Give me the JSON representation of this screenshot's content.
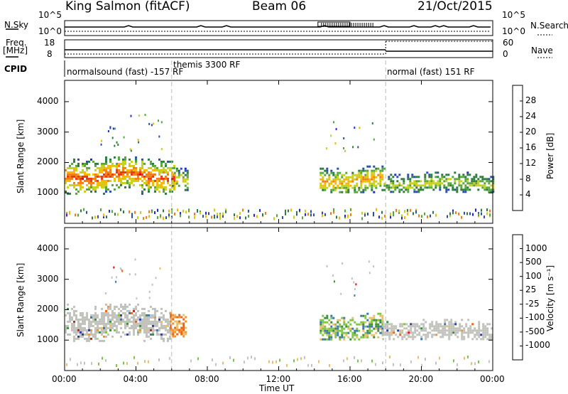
{
  "header": {
    "station": "King Salmon (fitACF)",
    "beam": "Beam 06",
    "date": "21/Oct/2015"
  },
  "top_panel": {
    "nsky_label": "N.Sky",
    "nsky_ticks": [
      "10^5",
      "10^0"
    ],
    "nsearch_label": "N.Search",
    "nsearch_ticks": [
      "10^5",
      "10^0"
    ],
    "freq_label": "Freq.",
    "freq_unit": "[MHz]",
    "freq_ticks": [
      "18",
      "8"
    ],
    "nave_label": "Nave",
    "nave_ticks": [
      "60",
      "0"
    ],
    "cpid_label": "CPID",
    "cpid_segments": [
      {
        "label": "normalsound (fast) -157 RF",
        "start_hour": 0.0,
        "end_hour": 6.0
      },
      {
        "label": "themis 3300 RF",
        "start_hour": 6.0,
        "end_hour": 18.0
      },
      {
        "label": "normal (fast) 151 RF",
        "start_hour": 18.0,
        "end_hour": 24.0
      }
    ]
  },
  "axes": {
    "x_label": "Time UT",
    "x_ticks": [
      "00:00",
      "04:00",
      "08:00",
      "12:00",
      "16:00",
      "20:00",
      "00:00"
    ],
    "y_label": "Slant Range [km]",
    "y_ticks": [
      "1000",
      "2000",
      "3000",
      "4000"
    ],
    "power_colorbar_label": "Power [dB]",
    "power_colorbar_ticks": [
      "4",
      "8",
      "12",
      "16",
      "20",
      "24",
      "28"
    ],
    "velocity_colorbar_label": "Velocity [m s⁻¹]",
    "velocity_colorbar_ticks": [
      "1000",
      "500",
      "100",
      "25",
      "-25",
      "-100",
      "-500",
      "-1000"
    ]
  },
  "chart_data": [
    {
      "type": "heatmap",
      "panel": "power",
      "x": "Time UT (hours)",
      "xlim": [
        0,
        24
      ],
      "ylim": [
        0,
        4700
      ],
      "ylabel": "Slant Range [km]",
      "colorbar": {
        "label": "Power [dB]",
        "min": 0,
        "max": 32
      },
      "regions": [
        {
          "t_start": 0.0,
          "t_end": 6.2,
          "range_low": 1000,
          "range_high": 2200,
          "peak_power_db": 26
        },
        {
          "t_start": 6.0,
          "t_end": 6.9,
          "range_low": 1100,
          "range_high": 1900,
          "peak_power_db": 18
        },
        {
          "t_start": 14.3,
          "t_end": 18.0,
          "range_low": 1000,
          "range_high": 1900,
          "peak_power_db": 22
        },
        {
          "t_start": 18.0,
          "t_end": 24.0,
          "range_low": 1000,
          "range_high": 1700,
          "peak_power_db": 16
        }
      ],
      "near_range_band_km": [
        200,
        500
      ]
    },
    {
      "type": "heatmap",
      "panel": "velocity",
      "x": "Time UT (hours)",
      "xlim": [
        0,
        24
      ],
      "ylim": [
        0,
        4700
      ],
      "ylabel": "Slant Range [km]",
      "colorbar": {
        "label": "Velocity [m s⁻¹]",
        "levels": [
          -1000,
          -500,
          -100,
          -25,
          25,
          100,
          500,
          1000
        ]
      },
      "regions": [
        {
          "t_start": 0.0,
          "t_end": 5.9,
          "range_low": 1000,
          "range_high": 2200,
          "velocity": 0,
          "category": "ground scatter (grey)"
        },
        {
          "t_start": 5.9,
          "t_end": 6.8,
          "range_low": 1100,
          "range_high": 2000,
          "velocity": -300,
          "category": "orange"
        },
        {
          "t_start": 14.3,
          "t_end": 17.8,
          "range_low": 1000,
          "range_high": 1900,
          "velocity": 200,
          "category": "green"
        },
        {
          "t_start": 17.8,
          "t_end": 24.0,
          "range_low": 1000,
          "range_high": 1700,
          "velocity": 0,
          "category": "ground scatter (grey)"
        }
      ]
    }
  ],
  "colors": {
    "power_scale": [
      "#1f27e6",
      "#2a4fb0",
      "#2d7d3f",
      "#57a83c",
      "#c8d11a",
      "#f5b800",
      "#f47e12",
      "#e63a10",
      "#d40c0c"
    ],
    "velocity_scale": [
      "#2a3f9e",
      "#3e77b8",
      "#3d8f3d",
      "#7ec545",
      "#c6c6c0",
      "#e7c06a",
      "#f49329",
      "#ee6414",
      "#e8150c"
    ],
    "ground_scatter": "#c2c2bc"
  }
}
